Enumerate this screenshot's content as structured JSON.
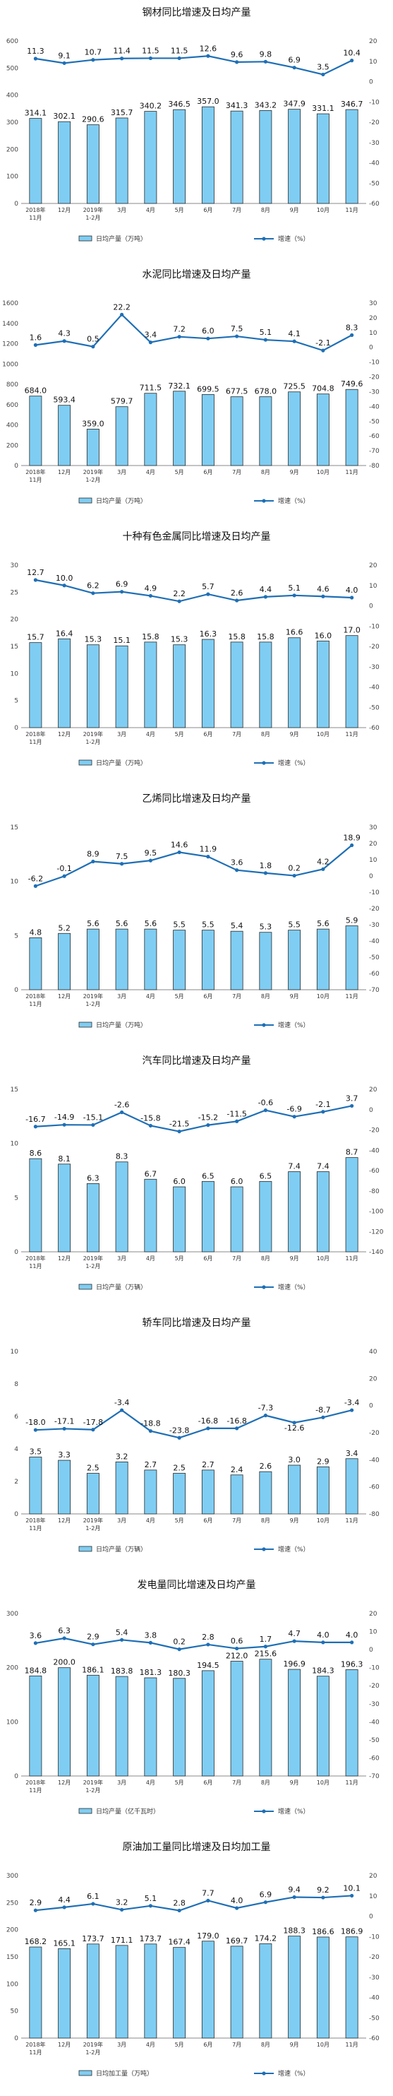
{
  "categories": [
    [
      "2018年",
      "11月"
    ],
    [
      "12月"
    ],
    [
      "2019年",
      "1-2月"
    ],
    [
      "3月"
    ],
    [
      "4月"
    ],
    [
      "5月"
    ],
    [
      "6月"
    ],
    [
      "7月"
    ],
    [
      "8月"
    ],
    [
      "9月"
    ],
    [
      "10月"
    ],
    [
      "11月"
    ]
  ],
  "colors": {
    "bar": "#7fcdf3",
    "bar_edge": "#2a2a2a",
    "line": "#1f6fb5"
  },
  "chart_data": [
    {
      "type": "bar+line",
      "title": "钢材同比增速及日均产量",
      "bar_legend": "日均产量（万吨）",
      "line_legend": "增速（%）",
      "y_left": {
        "min": 0,
        "max": 600,
        "step": 100
      },
      "y_right": {
        "min": -60,
        "max": 20,
        "step": 10
      },
      "bar_values": [
        314.1,
        302.1,
        290.6,
        315.7,
        340.2,
        346.5,
        357.0,
        341.3,
        343.2,
        347.9,
        331.1,
        346.7
      ],
      "bar_labels": [
        "314.1",
        "302.1",
        "290.6",
        "315.7",
        "340.2",
        "346.5",
        "357.0",
        "341.3",
        "343.2",
        "347.9",
        "331.1",
        "346.7"
      ],
      "line_values": [
        11.3,
        9.1,
        10.7,
        11.4,
        11.5,
        11.5,
        12.6,
        9.6,
        9.8,
        6.9,
        3.5,
        10.4
      ],
      "line_labels": [
        "11.3",
        "9.1",
        "10.7",
        "11.4",
        "11.5",
        "11.5",
        "12.6",
        "9.6",
        "9.8",
        "6.9",
        "3.5",
        "10.4"
      ]
    },
    {
      "type": "bar+line",
      "title": "水泥同比增速及日均产量",
      "bar_legend": "日均产量（万吨）",
      "line_legend": "增速（%）",
      "y_left": {
        "min": 0,
        "max": 1600,
        "step": 200
      },
      "y_right": {
        "min": -80,
        "max": 30,
        "step": 10
      },
      "bar_values": [
        684.0,
        593.4,
        359.0,
        579.7,
        711.5,
        732.1,
        699.5,
        677.5,
        678.0,
        725.5,
        704.8,
        749.6
      ],
      "bar_labels": [
        "684.0",
        "593.4",
        "359.0",
        "579.7",
        "711.5",
        "732.1",
        "699.5",
        "677.5",
        "678.0",
        "725.5",
        "704.8",
        "749.6"
      ],
      "line_values": [
        1.6,
        4.3,
        0.5,
        22.2,
        3.4,
        7.2,
        6.0,
        7.5,
        5.1,
        4.1,
        -2.1,
        8.3
      ],
      "line_labels": [
        "1.6",
        "4.3",
        "0.5",
        "22.2",
        "3.4",
        "7.2",
        "6.0",
        "7.5",
        "5.1",
        "4.1",
        "-2.1",
        "8.3"
      ]
    },
    {
      "type": "bar+line",
      "title": "十种有色金属同比增速及日均产量",
      "bar_legend": "日均产量（万吨）",
      "line_legend": "增速（%）",
      "y_left": {
        "min": 0,
        "max": 30,
        "step": 5
      },
      "y_right": {
        "min": -60,
        "max": 20,
        "step": 10
      },
      "bar_values": [
        15.7,
        16.4,
        15.3,
        15.1,
        15.8,
        15.3,
        16.3,
        15.8,
        15.8,
        16.6,
        16.0,
        17.0
      ],
      "bar_labels": [
        "15.7",
        "16.4",
        "15.3",
        "15.1",
        "15.8",
        "15.3",
        "16.3",
        "15.8",
        "15.8",
        "16.6",
        "16.0",
        "17.0"
      ],
      "line_values": [
        12.7,
        10.0,
        6.2,
        6.9,
        4.9,
        2.2,
        5.7,
        2.6,
        4.4,
        5.1,
        4.6,
        4.0
      ],
      "line_labels": [
        "12.7",
        "10.0",
        "6.2",
        "6.9",
        "4.9",
        "2.2",
        "5.7",
        "2.6",
        "4.4",
        "5.1",
        "4.6",
        "4.0"
      ]
    },
    {
      "type": "bar+line",
      "title": "乙烯同比增速及日均产量",
      "bar_legend": "日均产量（万吨）",
      "line_legend": "增速（%）",
      "y_left": {
        "min": 0,
        "max": 15,
        "step": 5
      },
      "y_right": {
        "min": -70,
        "max": 30,
        "step": 10
      },
      "bar_values": [
        4.8,
        5.2,
        5.6,
        5.6,
        5.6,
        5.5,
        5.5,
        5.4,
        5.3,
        5.5,
        5.6,
        5.9
      ],
      "bar_labels": [
        "4.8",
        "5.2",
        "5.6",
        "5.6",
        "5.6",
        "5.5",
        "5.5",
        "5.4",
        "5.3",
        "5.5",
        "5.6",
        "5.9"
      ],
      "line_values": [
        -6.2,
        -0.1,
        8.9,
        7.5,
        9.5,
        14.6,
        11.9,
        3.6,
        1.8,
        0.2,
        4.2,
        18.9
      ],
      "line_labels": [
        "-6.2",
        "-0.1",
        "8.9",
        "7.5",
        "9.5",
        "14.6",
        "11.9",
        "3.6",
        "1.8",
        "0.2",
        "4.2",
        "18.9"
      ]
    },
    {
      "type": "bar+line",
      "title": "汽车同比增速及日均产量",
      "bar_legend": "日均产量（万辆）",
      "line_legend": "增速（%）",
      "y_left": {
        "min": 0,
        "max": 15,
        "step": 5
      },
      "y_right": {
        "min": -140,
        "max": 20,
        "step": 20
      },
      "bar_values": [
        8.6,
        8.1,
        6.3,
        8.3,
        6.7,
        6.0,
        6.5,
        6.0,
        6.5,
        7.4,
        7.4,
        8.7
      ],
      "bar_labels": [
        "8.6",
        "8.1",
        "6.3",
        "8.3",
        "6.7",
        "6.0",
        "6.5",
        "6.0",
        "6.5",
        "7.4",
        "7.4",
        "8.7"
      ],
      "line_values": [
        -16.7,
        -14.9,
        -15.1,
        -2.6,
        -15.8,
        -21.5,
        -15.2,
        -11.5,
        -0.6,
        -6.9,
        -2.1,
        3.7
      ],
      "line_labels": [
        "-16.7",
        "-14.9",
        "-15.1",
        "-2.6",
        "-15.8",
        "-21.5",
        "-15.2",
        "-11.5",
        "-0.6",
        "-6.9",
        "-2.1",
        "3.7"
      ]
    },
    {
      "type": "bar+line",
      "title": "轿车同比增速及日均产量",
      "bar_legend": "日均产量（万辆）",
      "line_legend": "增速（%）",
      "y_left": {
        "min": 0,
        "max": 10,
        "step": 2
      },
      "y_right": {
        "min": -80,
        "max": 40,
        "step": 20
      },
      "bar_values": [
        3.5,
        3.3,
        2.5,
        3.2,
        2.7,
        2.5,
        2.7,
        2.4,
        2.6,
        3.0,
        2.9,
        3.4
      ],
      "bar_labels": [
        "3.5",
        "3.3",
        "2.5",
        "3.2",
        "2.7",
        "2.5",
        "2.7",
        "2.4",
        "2.6",
        "3.0",
        "2.9",
        "3.4"
      ],
      "line_values": [
        -18.0,
        -17.1,
        -17.8,
        -3.4,
        -18.8,
        -23.8,
        -16.8,
        -16.8,
        -7.3,
        -12.6,
        -8.7,
        -3.4
      ],
      "line_labels": [
        "-18.0",
        "-17.1",
        "-17.8",
        "-3.4",
        "-18.8",
        "-23.8",
        "-16.8",
        "-16.8",
        "-7.3",
        "-12.6",
        "-8.7",
        "-3.4"
      ],
      "label_offsets": [
        0,
        0,
        0,
        0,
        0,
        0,
        0,
        0,
        0,
        -18,
        0,
        0
      ]
    },
    {
      "type": "bar+line",
      "title": "发电量同比增速及日均产量",
      "bar_legend": "日均产量（亿千瓦时）",
      "line_legend": "增速（%）",
      "y_left": {
        "min": 0,
        "max": 300,
        "step": 100
      },
      "y_right": {
        "min": -70,
        "max": 20,
        "step": 10
      },
      "bar_values": [
        184.8,
        200.0,
        186.1,
        183.8,
        181.3,
        180.3,
        194.5,
        212.0,
        215.6,
        196.9,
        184.3,
        196.3
      ],
      "bar_labels": [
        "184.8",
        "200.0",
        "186.1",
        "183.8",
        "181.3",
        "180.3",
        "194.5",
        "212.0",
        "215.6",
        "196.9",
        "184.3",
        "196.3"
      ],
      "line_values": [
        3.6,
        6.3,
        2.9,
        5.4,
        3.8,
        0.2,
        2.8,
        0.6,
        1.7,
        4.7,
        4.0,
        4.0
      ],
      "line_labels": [
        "3.6",
        "6.3",
        "2.9",
        "5.4",
        "3.8",
        "0.2",
        "2.8",
        "0.6",
        "1.7",
        "4.7",
        "4.0",
        "4.0"
      ]
    },
    {
      "type": "bar+line",
      "title": "原油加工量同比增速及日均加工量",
      "bar_legend": "日均加工量（万吨）",
      "line_legend": "增速（%）",
      "y_left": {
        "min": 0,
        "max": 300,
        "step": 50
      },
      "y_right": {
        "min": -60,
        "max": 20,
        "step": 10
      },
      "bar_values": [
        168.2,
        165.1,
        173.7,
        171.1,
        173.7,
        167.4,
        179.0,
        169.7,
        174.2,
        188.3,
        186.6,
        186.9
      ],
      "bar_labels": [
        "168.2",
        "165.1",
        "173.7",
        "171.1",
        "173.7",
        "167.4",
        "179.0",
        "169.7",
        "174.2",
        "188.3",
        "186.6",
        "186.9"
      ],
      "line_values": [
        2.9,
        4.4,
        6.1,
        3.2,
        5.1,
        2.8,
        7.7,
        4.0,
        6.9,
        9.4,
        9.2,
        10.1
      ],
      "line_labels": [
        "2.9",
        "4.4",
        "6.1",
        "3.2",
        "5.1",
        "2.8",
        "7.7",
        "4.0",
        "6.9",
        "9.4",
        "9.2",
        "10.1"
      ]
    }
  ]
}
